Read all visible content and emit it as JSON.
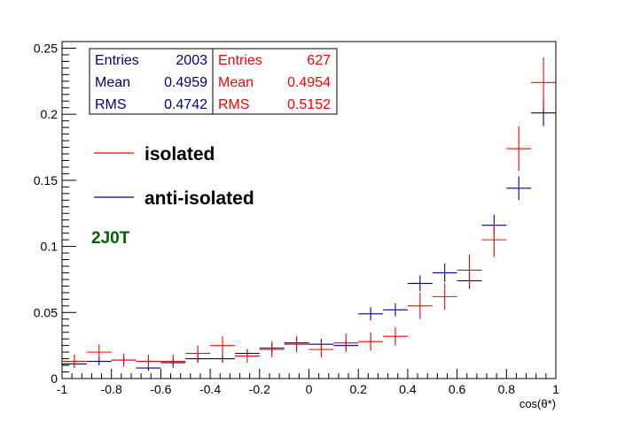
{
  "chart_data": {
    "type": "scatter",
    "xlabel": "cos(θ*)",
    "ylabel": "",
    "xlim": [
      -1,
      1
    ],
    "ylim": [
      0,
      0.255
    ],
    "x_ticks": [
      "-1",
      "-0.8",
      "-0.6",
      "-0.4",
      "-0.2",
      "0",
      "0.2",
      "0.4",
      "0.6",
      "0.8",
      "1"
    ],
    "y_ticks": [
      "0",
      "0.05",
      "0.1",
      "0.15",
      "0.2",
      "0.25"
    ],
    "x_tick_values": [
      -1,
      -0.8,
      -0.6,
      -0.4,
      -0.2,
      0,
      0.2,
      0.4,
      0.6,
      0.8,
      1
    ],
    "y_tick_values": [
      0,
      0.05,
      0.1,
      0.15,
      0.2,
      0.25
    ],
    "bin_half_width": 0.05,
    "series": [
      {
        "name": "anti-isolated",
        "color": "#000080",
        "x": [
          -0.95,
          -0.85,
          -0.75,
          -0.65,
          -0.55,
          -0.45,
          -0.35,
          -0.25,
          -0.15,
          -0.05,
          0.05,
          0.15,
          0.25,
          0.35,
          0.45,
          0.55,
          0.65,
          0.75,
          0.85,
          0.95
        ],
        "y": [
          0.011,
          0.013,
          0.014,
          0.008,
          0.012,
          0.015,
          0.015,
          0.019,
          0.023,
          0.027,
          0.026,
          0.025,
          0.049,
          0.052,
          0.072,
          0.08,
          0.074,
          0.116,
          0.144,
          0.201
        ],
        "err": [
          0.003,
          0.003,
          0.003,
          0.002,
          0.003,
          0.003,
          0.003,
          0.003,
          0.004,
          0.004,
          0.004,
          0.004,
          0.005,
          0.005,
          0.006,
          0.007,
          0.006,
          0.008,
          0.009,
          0.01
        ]
      },
      {
        "name": "isolated",
        "color": "#ff0000",
        "x": [
          -0.95,
          -0.85,
          -0.75,
          -0.65,
          -0.55,
          -0.45,
          -0.35,
          -0.25,
          -0.15,
          -0.05,
          0.05,
          0.15,
          0.25,
          0.35,
          0.45,
          0.55,
          0.65,
          0.75,
          0.85,
          0.95
        ],
        "y": [
          0.013,
          0.02,
          0.014,
          0.013,
          0.013,
          0.019,
          0.025,
          0.017,
          0.022,
          0.026,
          0.022,
          0.027,
          0.028,
          0.032,
          0.055,
          0.062,
          0.082,
          0.105,
          0.174,
          0.224
        ],
        "err": [
          0.005,
          0.006,
          0.005,
          0.005,
          0.005,
          0.006,
          0.007,
          0.005,
          0.006,
          0.006,
          0.006,
          0.007,
          0.007,
          0.007,
          0.01,
          0.01,
          0.012,
          0.013,
          0.017,
          0.019
        ]
      }
    ],
    "stats": [
      {
        "color": "#000080",
        "rows": [
          {
            "label": "Entries",
            "value": "2003"
          },
          {
            "label": "Mean",
            "value": "0.4959"
          },
          {
            "label": "RMS",
            "value": "0.4742"
          }
        ]
      },
      {
        "color": "#ff0000",
        "rows": [
          {
            "label": "Entries",
            "value": "627"
          },
          {
            "label": "Mean",
            "value": "0.4954"
          },
          {
            "label": "RMS",
            "value": "0.5152"
          }
        ]
      }
    ],
    "legend": [
      {
        "label": "isolated",
        "color": "#ff0000"
      },
      {
        "label": "anti-isolated",
        "color": "#000080"
      }
    ],
    "tag": {
      "text": "2J0T",
      "color": "#006400"
    },
    "grid": false,
    "legend_placement": "top-left"
  }
}
